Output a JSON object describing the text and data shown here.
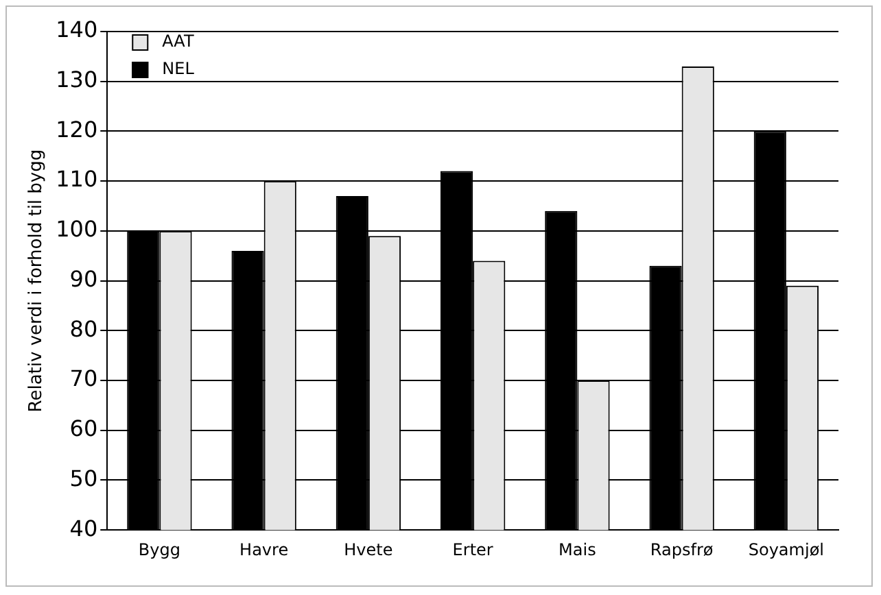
{
  "chart_data": {
    "type": "bar",
    "ylabel": "Relativ verdi i forhold til bygg",
    "categories": [
      "Bygg",
      "Havre",
      "Hvete",
      "Erter",
      "Mais",
      "Rapsfrø",
      "Soyamjøl"
    ],
    "series": [
      {
        "name": "NEL",
        "color": "#000000",
        "values": [
          100,
          96,
          107,
          112,
          104,
          93,
          120
        ]
      },
      {
        "name": "AAT",
        "color": "#e6e6e6",
        "values": [
          100,
          110,
          99,
          94,
          70,
          133,
          89
        ]
      }
    ],
    "ylim": [
      40,
      140
    ],
    "yticks": [
      40,
      50,
      60,
      70,
      80,
      90,
      100,
      110,
      120,
      130,
      140
    ],
    "grid": "y",
    "legend": "top left"
  }
}
